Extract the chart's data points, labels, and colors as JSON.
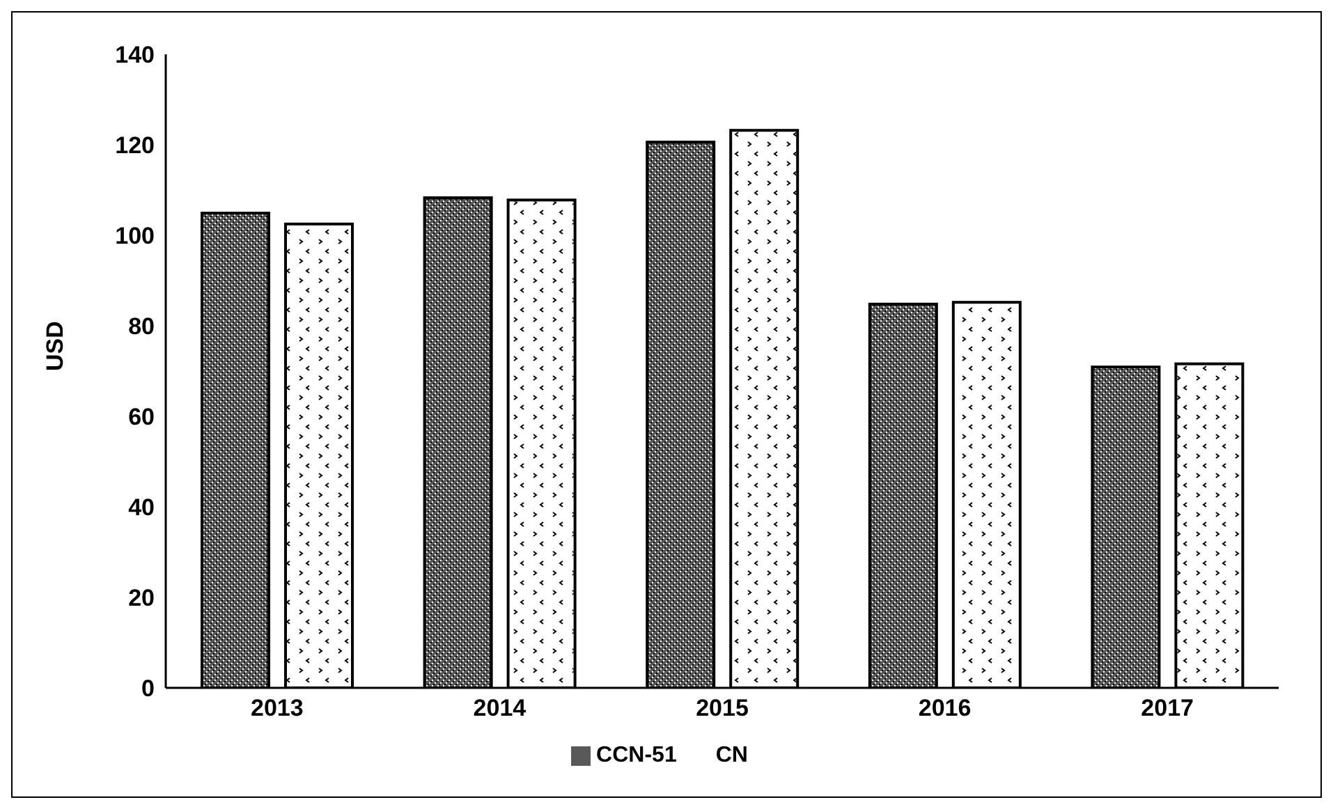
{
  "chart_data": {
    "type": "bar",
    "ylabel": "USD",
    "categories": [
      "2013",
      "2014",
      "2015",
      "2016",
      "2017"
    ],
    "series": [
      {
        "name": "CCN-51",
        "color": "#595959",
        "values": [
          104.9,
          108.3,
          120.6,
          84.8,
          70.9
        ]
      },
      {
        "name": "CN",
        "color": "#ffffff",
        "values": [
          102.5,
          107.8,
          123.2,
          85.2,
          71.6
        ]
      }
    ],
    "ylim": [
      0,
      140
    ],
    "yticks": [
      0,
      20,
      40,
      60,
      80,
      100,
      120,
      140
    ],
    "grid": false,
    "legend": "bottom"
  }
}
